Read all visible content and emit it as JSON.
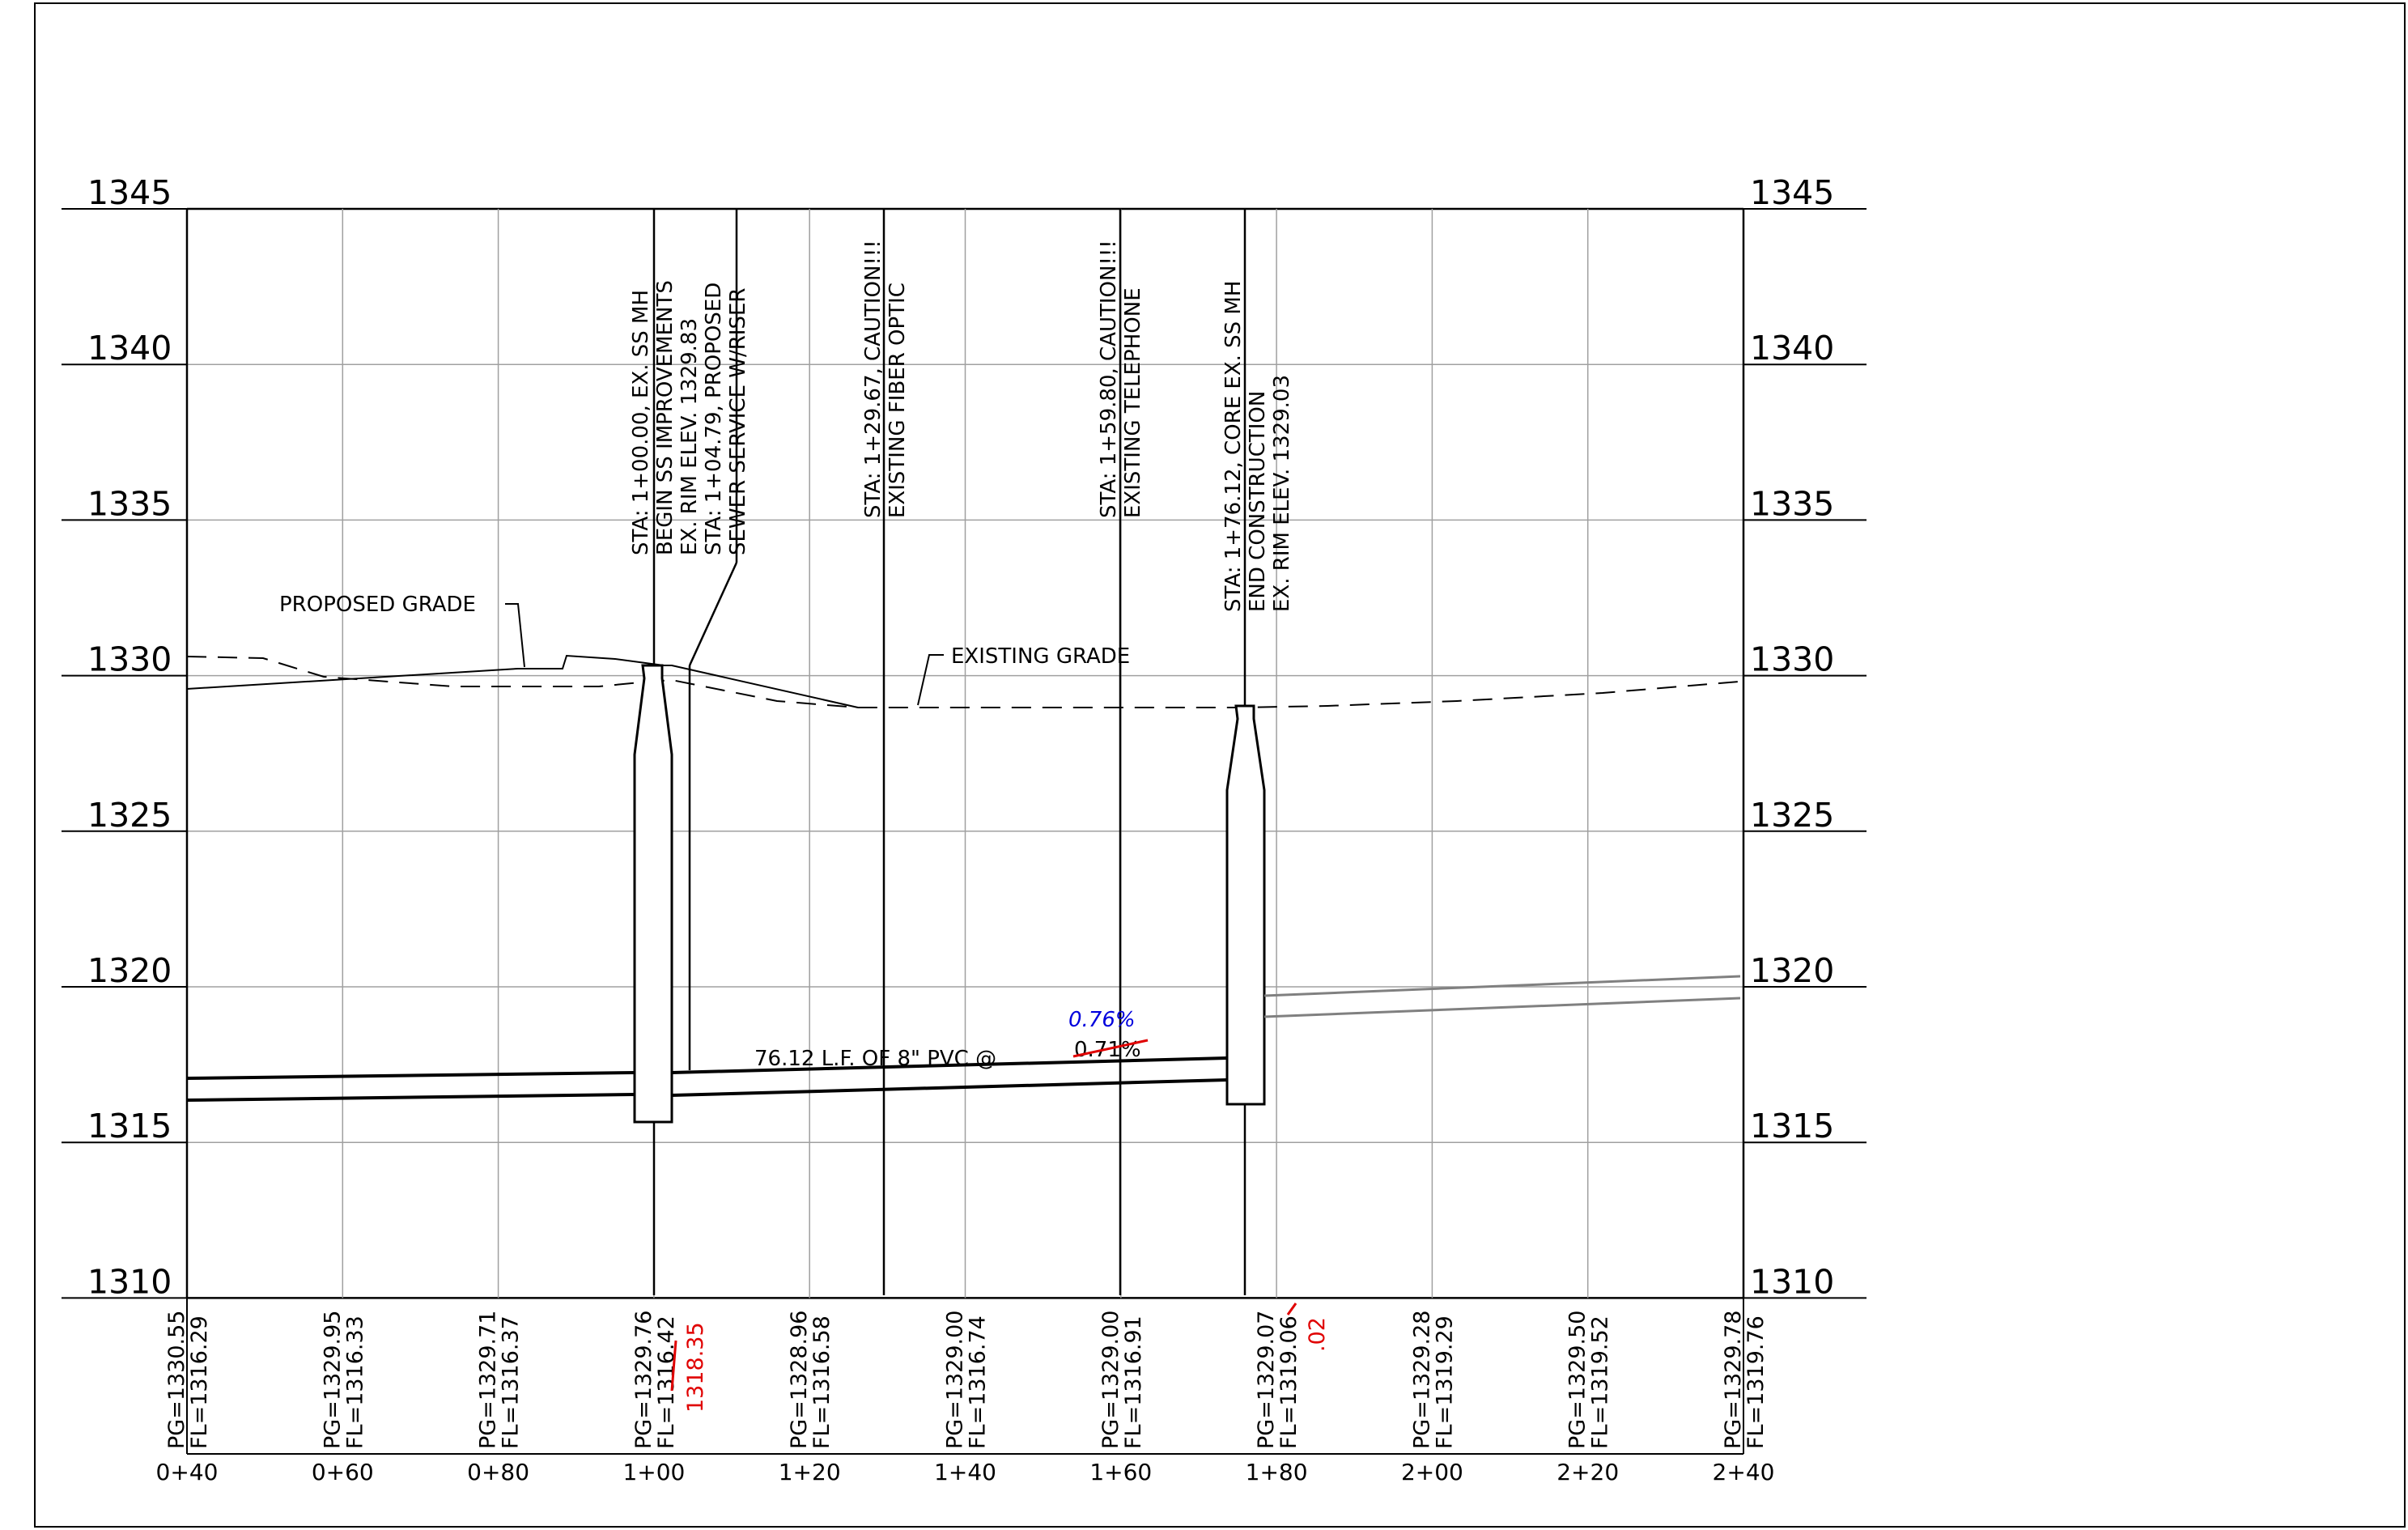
{
  "drawing": {
    "type": "sanitary sewer profile",
    "elevation_labels": [
      "1345",
      "1340",
      "1335",
      "1330",
      "1325",
      "1320",
      "1315",
      "1310"
    ],
    "station_labels": [
      "0+40",
      "0+60",
      "0+80",
      "1+00",
      "1+20",
      "1+40",
      "1+60",
      "1+80",
      "2+00",
      "2+20",
      "2+40"
    ],
    "grade_data": [
      {
        "pg": "PG=1330.55",
        "fl": "FL=1316.29"
      },
      {
        "pg": "PG=1329.95",
        "fl": "FL=1316.33"
      },
      {
        "pg": "PG=1329.71",
        "fl": "FL=1316.37"
      },
      {
        "pg": "PG=1329.76",
        "fl": "FL=1316.42"
      },
      {
        "pg": "PG=1328.96",
        "fl": "FL=1316.58"
      },
      {
        "pg": "PG=1329.00",
        "fl": "FL=1316.74"
      },
      {
        "pg": "PG=1329.00",
        "fl": "FL=1316.91"
      },
      {
        "pg": "PG=1329.07",
        "fl": "FL=1319.06"
      },
      {
        "pg": "PG=1329.28",
        "fl": "FL=1319.29"
      },
      {
        "pg": "PG=1329.50",
        "fl": "FL=1319.52"
      },
      {
        "pg": "PG=1329.78",
        "fl": "FL=1319.76"
      }
    ],
    "red_corrections": {
      "fl_1_00": "1318.35",
      "fl_1_80": ".02"
    },
    "callouts": {
      "mh1": [
        "STA: 1+00.00, EX. SS MH",
        "BEGIN SS IMPROVEMENTS",
        "EX. RIM ELEV. 1329.83",
        "STA: 1+04.79, PROPOSED",
        "SEWER SERVICE W/RISER"
      ],
      "fiber": [
        "STA: 1+29.67, CAUTION!!!",
        "EXISTING FIBER OPTIC"
      ],
      "telephone": [
        "STA: 1+59.80, CAUTION!!!",
        "EXISTING TELEPHONE"
      ],
      "mh2": [
        "STA: 1+76.12, CORE EX. SS MH",
        "END CONSTRUCTION",
        "EX. RIM ELEV. 1329.03"
      ]
    },
    "proposed_grade_label": "PROPOSED GRADE",
    "existing_grade_label": "EXISTING GRADE",
    "pipe_label": "76.12 L.F. OF 8\" PVC @",
    "old_slope": "0.71%",
    "new_slope": "0.76%",
    "colors": {
      "line": "#000000",
      "grid": "#a0a0a0",
      "markup_red": "#e00000",
      "markup_blue": "#0000dd"
    }
  }
}
